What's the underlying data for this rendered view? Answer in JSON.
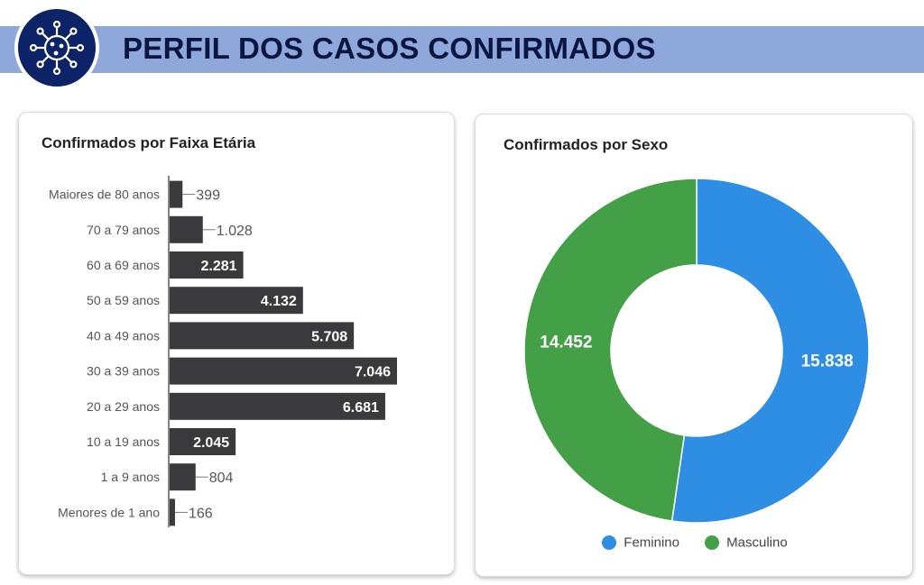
{
  "header": {
    "title": "PERFIL DOS CASOS CONFIRMADOS",
    "logo_icon": "virus-icon",
    "bar_color": "#8fa8dc",
    "logo_color": "#0d2367"
  },
  "chart_data": [
    {
      "type": "bar",
      "orientation": "horizontal",
      "title": "Confirmados por Faixa Etária",
      "categories": [
        "Maiores de 80 anos",
        "70 a 79 anos",
        "60 a 69 anos",
        "50 a 59 anos",
        "40 a 49 anos",
        "30 a 39 anos",
        "20 a 29 anos",
        "10 a 19 anos",
        "1 a 9 anos",
        "Menores de 1 ano"
      ],
      "values": [
        399,
        1028,
        2281,
        4132,
        5708,
        7046,
        6681,
        2045,
        804,
        166
      ],
      "value_labels": [
        "399",
        "1.028",
        "2.281",
        "4.132",
        "5.708",
        "7.046",
        "6.681",
        "2.045",
        "804",
        "166"
      ],
      "xlim": [
        0,
        7046
      ],
      "grid": false,
      "color": "#3a3a3c"
    },
    {
      "type": "pie",
      "donut": true,
      "title": "Confirmados por Sexo",
      "labels": [
        "Feminino",
        "Masculino"
      ],
      "values": [
        15838,
        14452
      ],
      "value_labels": [
        "15.838",
        "14.452"
      ],
      "colors": [
        "#2e8ee4",
        "#43a047"
      ],
      "legend": "bottom"
    }
  ]
}
